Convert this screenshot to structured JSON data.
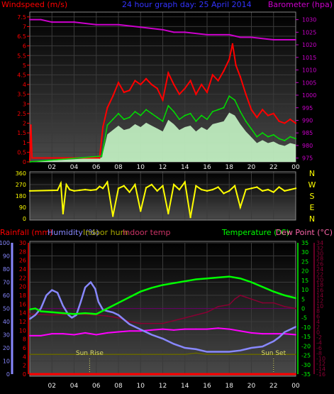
{
  "chart_data": [
    {
      "type": "line",
      "title": "24 hour graph day: 25 April 2014",
      "left_axis_label": "Windspeed (m/s)",
      "right_axis_label": "Barometer (hpa)",
      "x_ticks": [
        "02",
        "04",
        "06",
        "08",
        "10",
        "12",
        "14",
        "16",
        "18",
        "20",
        "22",
        "00"
      ],
      "y_left_ticks": [
        "0",
        "0.5",
        "1",
        "1.5",
        "2",
        "2.5",
        "3",
        "3.5",
        "4",
        "4.5",
        "5",
        "5.5",
        "6",
        "6.5",
        "7",
        "7.5"
      ],
      "y_left_range": [
        0,
        7.75
      ],
      "y_right_ticks": [
        "975",
        "980",
        "985",
        "990",
        "995",
        "1000",
        "1005",
        "1010",
        "1015",
        "1020",
        "1025",
        "1030"
      ],
      "y_right_range": [
        973.5,
        1033
      ],
      "colors": {
        "gust": "#ff0000",
        "speed": "#00e000",
        "avg": "#ccffcc",
        "baro": "#cc00cc"
      },
      "series": [
        {
          "name": "Barometer",
          "axis": "right",
          "x": [
            0,
            1,
            2,
            4,
            6,
            8,
            10,
            12,
            13,
            14,
            16,
            18,
            19,
            20,
            22,
            24
          ],
          "y": [
            1030,
            1030,
            1029,
            1029,
            1028,
            1028,
            1027,
            1026,
            1025,
            1025,
            1024,
            1024,
            1023,
            1023,
            1022,
            1022
          ]
        },
        {
          "name": "Gust",
          "axis": "left",
          "x": [
            0,
            0.1,
            0.2,
            6.3,
            6.6,
            7,
            7.5,
            8,
            8.5,
            9,
            9.5,
            10,
            10.5,
            11,
            11.5,
            12,
            12.5,
            13,
            13.5,
            14,
            14.5,
            15,
            15.5,
            16,
            16.5,
            17,
            17.5,
            18,
            18.3,
            18.6,
            19,
            19.5,
            20,
            20.5,
            21,
            21.5,
            22,
            22.5,
            23,
            23.5,
            24
          ],
          "y": [
            0.1,
            1.9,
            0.2,
            0.2,
            1.8,
            2.8,
            3.4,
            4.1,
            3.6,
            3.7,
            4.2,
            4.0,
            4.3,
            4.0,
            3.8,
            3.2,
            4.6,
            4.0,
            3.5,
            3.8,
            4.2,
            3.5,
            4.0,
            3.6,
            4.5,
            4.2,
            4.7,
            5.3,
            6.1,
            5.0,
            4.4,
            3.5,
            2.7,
            2.3,
            2.7,
            2.4,
            2.5,
            2.1,
            2.0,
            2.2,
            2.0
          ]
        },
        {
          "name": "Speed",
          "axis": "left",
          "x": [
            0,
            6.5,
            7,
            7.5,
            8,
            8.5,
            9,
            9.5,
            10,
            10.5,
            11,
            11.5,
            12,
            12.5,
            13,
            13.5,
            14,
            14.5,
            15,
            15.5,
            16,
            16.5,
            17,
            17.5,
            18,
            18.5,
            19,
            19.5,
            20,
            20.5,
            21,
            21.5,
            22,
            22.5,
            23,
            23.5,
            24
          ],
          "y": [
            0,
            0.3,
            1.9,
            2.2,
            2.5,
            2.2,
            2.3,
            2.6,
            2.4,
            2.7,
            2.5,
            2.3,
            2.1,
            2.9,
            2.6,
            2.2,
            2.4,
            2.5,
            2.1,
            2.4,
            2.2,
            2.6,
            2.7,
            2.8,
            3.4,
            3.2,
            2.6,
            2.1,
            1.7,
            1.3,
            1.5,
            1.3,
            1.4,
            1.2,
            1.1,
            1.3,
            1.2
          ]
        }
      ]
    },
    {
      "type": "line",
      "title": "",
      "left_axis_label": "",
      "x_ticks": [
        "02",
        "04",
        "06",
        "08",
        "10",
        "12",
        "14",
        "16",
        "18",
        "20",
        "22",
        "00"
      ],
      "y_left_ticks": [
        "0",
        "90",
        "180",
        "270",
        "360"
      ],
      "y_left_range": [
        0,
        360
      ],
      "right_letters": [
        "N",
        "W",
        "S",
        "E",
        "N"
      ],
      "colors": {
        "dir": "#ffff00"
      },
      "series": [
        {
          "name": "Wind direction",
          "x": [
            0,
            2.5,
            2.8,
            3,
            3.3,
            3.6,
            4,
            4.5,
            5,
            5.5,
            6,
            6.3,
            6.6,
            7,
            7.5,
            8,
            8.5,
            9,
            9.5,
            10,
            10.5,
            11,
            11.5,
            12,
            12.5,
            13,
            13.5,
            14,
            14.5,
            15,
            15.5,
            16,
            16.5,
            17,
            17.5,
            18,
            18.5,
            19,
            19.5,
            20,
            20.5,
            21,
            21.5,
            22,
            22.5,
            23,
            23.5,
            24
          ],
          "y": [
            220,
            225,
            280,
            40,
            270,
            230,
            220,
            225,
            230,
            225,
            230,
            255,
            240,
            290,
            20,
            240,
            260,
            210,
            270,
            60,
            245,
            270,
            220,
            260,
            40,
            270,
            230,
            290,
            10,
            260,
            230,
            220,
            230,
            250,
            200,
            220,
            260,
            90,
            230,
            240,
            250,
            220,
            230,
            210,
            250,
            220,
            230,
            240
          ]
        }
      ]
    },
    {
      "type": "line",
      "title": "",
      "left_axis_labels": [
        "Rainfall (mm)",
        "Humidity (%)",
        "Indoor hum",
        "Indoor temp"
      ],
      "right_axis_labels": [
        "Temperature (°C)",
        "Dew Point (°C)"
      ],
      "x_ticks": [
        "02",
        "04",
        "06",
        "08",
        "10",
        "12",
        "14",
        "16",
        "18",
        "20",
        "22",
        "00"
      ],
      "y_humidity_ticks": [
        "0",
        "10",
        "20",
        "30",
        "40",
        "50",
        "60",
        "70",
        "80",
        "90",
        "100"
      ],
      "y_rain_ticks": [
        "0",
        "2",
        "4",
        "6",
        "8",
        "10",
        "12",
        "14",
        "16",
        "18",
        "20",
        "22",
        "24",
        "26",
        "28",
        "30"
      ],
      "y_temp_ticks": [
        "-35",
        "-30",
        "-25",
        "-20",
        "-15",
        "-10",
        "-5",
        "0",
        "5",
        "10",
        "15",
        "20",
        "25",
        "30",
        "35"
      ],
      "y_dew_ticks": [
        "-16",
        "-14",
        "-12",
        "-10",
        "-8",
        "-6",
        "-4",
        "-2",
        "0",
        "2",
        "4",
        "6",
        "8",
        "10",
        "12",
        "14",
        "16",
        "18",
        "20",
        "22",
        "24",
        "26",
        "28",
        "30",
        "32",
        "34"
      ],
      "annotations": [
        "Sun Rise",
        "Sun Set"
      ],
      "sunrise_hour": 5.4,
      "sunset_hour": 22.0,
      "colors": {
        "rain": "#ff0000",
        "humidity": "#8888ff",
        "temp": "#00ff00",
        "dew": "#880033",
        "inhum": "#666600",
        "intemp": "#ff00ff"
      },
      "series": [
        {
          "name": "Humidity",
          "axis": "humidity",
          "x": [
            0,
            0.5,
            1,
            1.5,
            2,
            2.5,
            3,
            3.5,
            3.8,
            4.2,
            4.6,
            5,
            5.5,
            5.9,
            6.2,
            6.6,
            7,
            7.5,
            8,
            9,
            10,
            11,
            12,
            13,
            14,
            15,
            16,
            17,
            18,
            19,
            19.5,
            20,
            21,
            22,
            22.5,
            23,
            23.5,
            24
          ],
          "y": [
            42,
            45,
            50,
            60,
            64,
            62,
            52,
            45,
            43,
            45,
            55,
            66,
            70,
            65,
            55,
            49,
            48,
            47,
            45,
            38,
            34,
            30,
            27,
            23,
            20,
            19,
            17,
            17,
            17,
            18,
            19,
            20,
            21,
            25,
            28,
            32,
            34,
            36
          ]
        },
        {
          "name": "Temperature",
          "axis": "temp",
          "x": [
            0,
            0.5,
            1,
            2,
            3,
            4,
            5,
            6,
            7,
            8,
            9,
            10,
            11,
            12,
            13,
            14,
            15,
            16,
            17,
            18,
            19,
            20,
            21,
            22,
            23,
            24
          ],
          "y": [
            -0.5,
            0,
            -1.5,
            -2,
            -2.5,
            -3,
            -2.5,
            -3,
            0,
            3,
            6,
            9,
            11,
            12.5,
            13.5,
            14.5,
            15.5,
            16,
            16.5,
            17,
            16,
            14,
            11.5,
            9,
            7,
            5.5
          ]
        },
        {
          "name": "Dew Point",
          "axis": "temp",
          "x": [
            0,
            2,
            4,
            6,
            7,
            8,
            9,
            10,
            12,
            14,
            16,
            17,
            18,
            18.5,
            19,
            19.5,
            20,
            21,
            22,
            23,
            24
          ],
          "y": [
            -3,
            -3.5,
            -3,
            -3.5,
            -4,
            -5,
            -7,
            -8,
            -8,
            -5,
            -2,
            1,
            2,
            5,
            7,
            6,
            5,
            3,
            3,
            1,
            0
          ]
        },
        {
          "name": "Indoor temp",
          "axis": "temp",
          "x": [
            0,
            1,
            2,
            3,
            4,
            5,
            6,
            7,
            8,
            9,
            10,
            11,
            12,
            13,
            14,
            15,
            16,
            17,
            18,
            19,
            20,
            21,
            22,
            23,
            24
          ],
          "y": [
            -14.5,
            -14.5,
            -13.5,
            -13.5,
            -14,
            -13,
            -14,
            -13,
            -12.5,
            -12,
            -12,
            -11.5,
            -11,
            -11.5,
            -11,
            -11,
            -11,
            -10.5,
            -11,
            -12,
            -13,
            -13.5,
            -13.5,
            -13.5,
            -14
          ]
        },
        {
          "name": "Indoor hum",
          "axis": "humidity",
          "x": [
            0,
            5,
            6,
            8,
            10,
            12,
            14,
            15,
            16,
            17,
            18,
            20,
            22,
            24
          ],
          "y": [
            15,
            15,
            15,
            15,
            15,
            15,
            15,
            16,
            15,
            15,
            15,
            15,
            15,
            15
          ]
        },
        {
          "name": "Rainfall",
          "axis": "rain",
          "x": [
            0,
            24
          ],
          "y": [
            0,
            0
          ]
        }
      ]
    }
  ]
}
